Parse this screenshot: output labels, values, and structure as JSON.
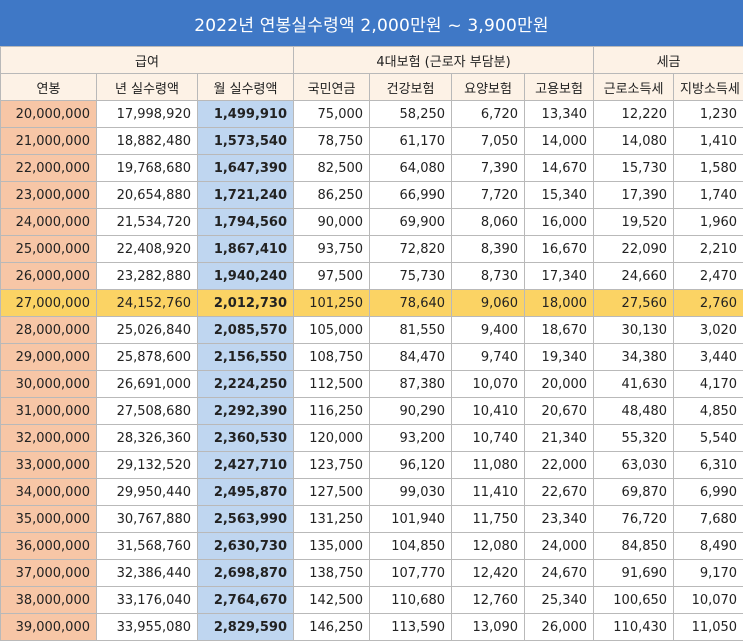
{
  "title": "2022년 연봉실수령액 2,000만원 ~ 3,900만원",
  "groups": {
    "salary": "급여",
    "insurance": "4대보험 (근로자 부담분)",
    "tax": "세금"
  },
  "columns": [
    "연봉",
    "년 실수령액",
    "월 실수령액",
    "국민연금",
    "건강보험",
    "요양보험",
    "고용보험",
    "근로소득세",
    "지방소득세"
  ],
  "highlight_row": 7,
  "colors": {
    "title_bg": "#3f78c6",
    "header_bg": "#fdf2e6",
    "annual_bg": "#f7c6a6",
    "monthly_bg": "#bfd6f0",
    "highlight_bg": "#fbd364"
  },
  "rows": [
    [
      "20,000,000",
      "17,998,920",
      "1,499,910",
      "75,000",
      "58,250",
      "6,720",
      "13,340",
      "12,220",
      "1,230"
    ],
    [
      "21,000,000",
      "18,882,480",
      "1,573,540",
      "78,750",
      "61,170",
      "7,050",
      "14,000",
      "14,080",
      "1,410"
    ],
    [
      "22,000,000",
      "19,768,680",
      "1,647,390",
      "82,500",
      "64,080",
      "7,390",
      "14,670",
      "15,730",
      "1,580"
    ],
    [
      "23,000,000",
      "20,654,880",
      "1,721,240",
      "86,250",
      "66,990",
      "7,720",
      "15,340",
      "17,390",
      "1,740"
    ],
    [
      "24,000,000",
      "21,534,720",
      "1,794,560",
      "90,000",
      "69,900",
      "8,060",
      "16,000",
      "19,520",
      "1,960"
    ],
    [
      "25,000,000",
      "22,408,920",
      "1,867,410",
      "93,750",
      "72,820",
      "8,390",
      "16,670",
      "22,090",
      "2,210"
    ],
    [
      "26,000,000",
      "23,282,880",
      "1,940,240",
      "97,500",
      "75,730",
      "8,730",
      "17,340",
      "24,660",
      "2,470"
    ],
    [
      "27,000,000",
      "24,152,760",
      "2,012,730",
      "101,250",
      "78,640",
      "9,060",
      "18,000",
      "27,560",
      "2,760"
    ],
    [
      "28,000,000",
      "25,026,840",
      "2,085,570",
      "105,000",
      "81,550",
      "9,400",
      "18,670",
      "30,130",
      "3,020"
    ],
    [
      "29,000,000",
      "25,878,600",
      "2,156,550",
      "108,750",
      "84,470",
      "9,740",
      "19,340",
      "34,380",
      "3,440"
    ],
    [
      "30,000,000",
      "26,691,000",
      "2,224,250",
      "112,500",
      "87,380",
      "10,070",
      "20,000",
      "41,630",
      "4,170"
    ],
    [
      "31,000,000",
      "27,508,680",
      "2,292,390",
      "116,250",
      "90,290",
      "10,410",
      "20,670",
      "48,480",
      "4,850"
    ],
    [
      "32,000,000",
      "28,326,360",
      "2,360,530",
      "120,000",
      "93,200",
      "10,740",
      "21,340",
      "55,320",
      "5,540"
    ],
    [
      "33,000,000",
      "29,132,520",
      "2,427,710",
      "123,750",
      "96,120",
      "11,080",
      "22,000",
      "63,030",
      "6,310"
    ],
    [
      "34,000,000",
      "29,950,440",
      "2,495,870",
      "127,500",
      "99,030",
      "11,410",
      "22,670",
      "69,870",
      "6,990"
    ],
    [
      "35,000,000",
      "30,767,880",
      "2,563,990",
      "131,250",
      "101,940",
      "11,750",
      "23,340",
      "76,720",
      "7,680"
    ],
    [
      "36,000,000",
      "31,568,760",
      "2,630,730",
      "135,000",
      "104,850",
      "12,080",
      "24,000",
      "84,850",
      "8,490"
    ],
    [
      "37,000,000",
      "32,386,440",
      "2,698,870",
      "138,750",
      "107,770",
      "12,420",
      "24,670",
      "91,690",
      "9,170"
    ],
    [
      "38,000,000",
      "33,176,040",
      "2,764,670",
      "142,500",
      "110,680",
      "12,760",
      "25,340",
      "100,650",
      "10,070"
    ],
    [
      "39,000,000",
      "33,955,080",
      "2,829,590",
      "146,250",
      "113,590",
      "13,090",
      "26,000",
      "110,430",
      "11,050"
    ]
  ]
}
